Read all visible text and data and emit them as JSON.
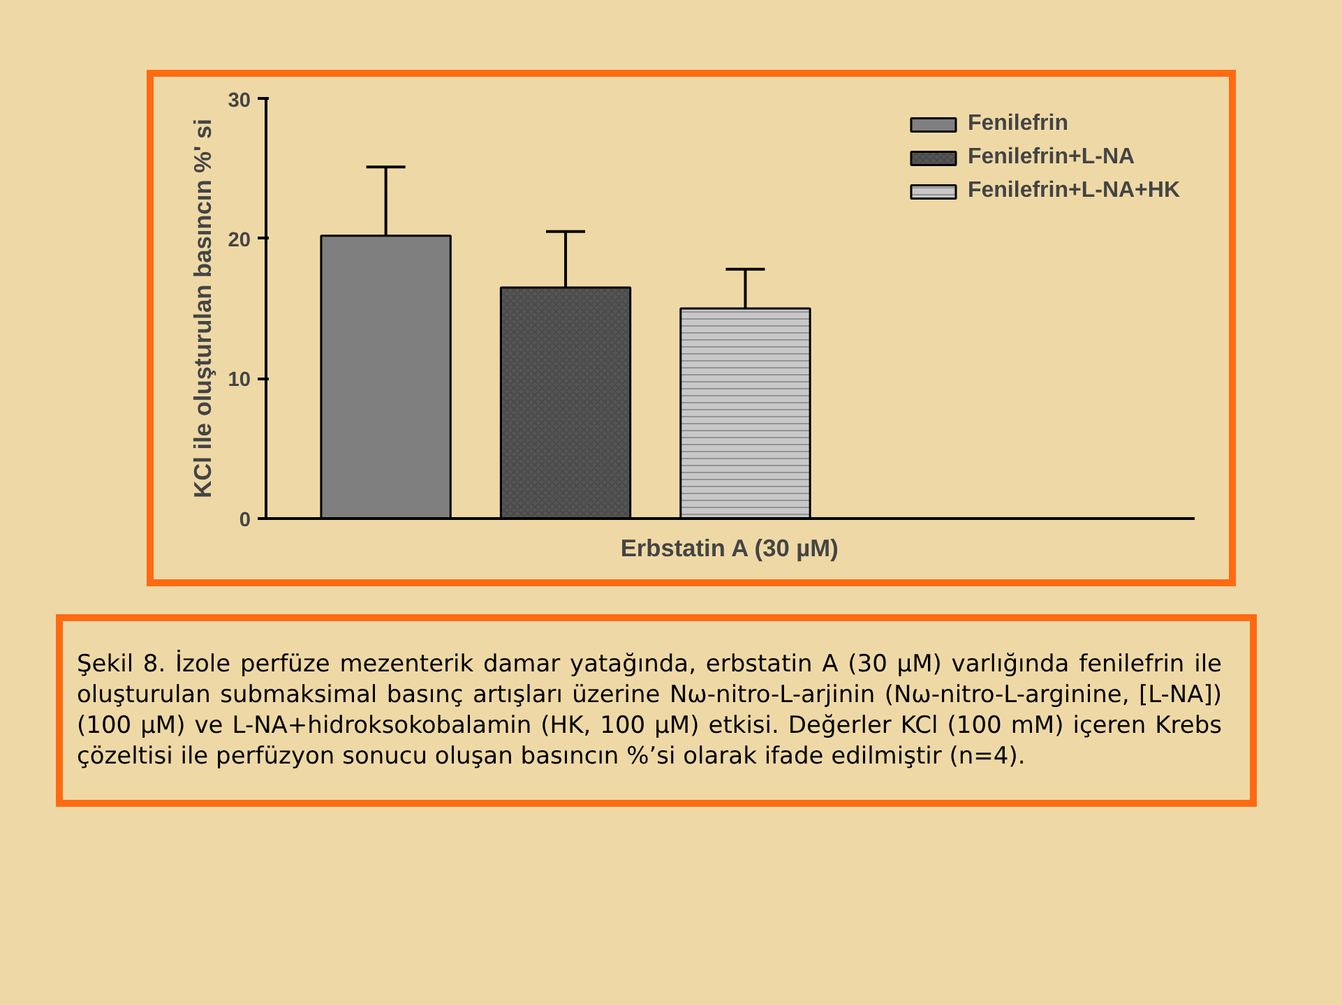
{
  "chart_data": {
    "type": "bar",
    "xlabel": "Erbstatin A (30 µM)",
    "ylabel": "KCl ile oluşturulan basıncın %' si",
    "categories": [
      null
    ],
    "series": [
      {
        "name": "Fenilefrin",
        "color": "#7f7f7f",
        "values": [
          20.2
        ],
        "errors": [
          [
            20.2,
            25.1
          ]
        ]
      },
      {
        "name": "Fenilefrin+L-NA",
        "color": "#555555",
        "values": [
          16.5
        ],
        "errors": [
          [
            16.5,
            20.5
          ]
        ]
      },
      {
        "name": "Fenilefrin+L-NA+HK",
        "color": "#c8c8c8",
        "values": [
          15.0
        ],
        "errors": [
          [
            15.0,
            17.8
          ]
        ]
      }
    ],
    "ylim": [
      0,
      30
    ],
    "yticks": [
      0,
      10,
      20,
      30
    ],
    "grid": false,
    "legend": "top right",
    "tick_labels": "y",
    "annotations": [
      "Şekil 8. İzole perfüze mezenterik damar yatağında, erbstatin A (30 µM) varlığında fenilefrin ile oluşturulan submaksimal basınç artışları üzerine Nω-nitro-L-arjinin (Nω-nitro-L-arginine, [L-NA]) (100 µM) ve L-NA+hidroksokobalamin (HK, 100 µM) etkisi. Değerler KCl (100 mM) içeren Krebs çözeltisi ile perfüzyon sonucu oluşan basıncın %’si olarak ifade edilmiştir (n=4)."
    ]
  }
}
